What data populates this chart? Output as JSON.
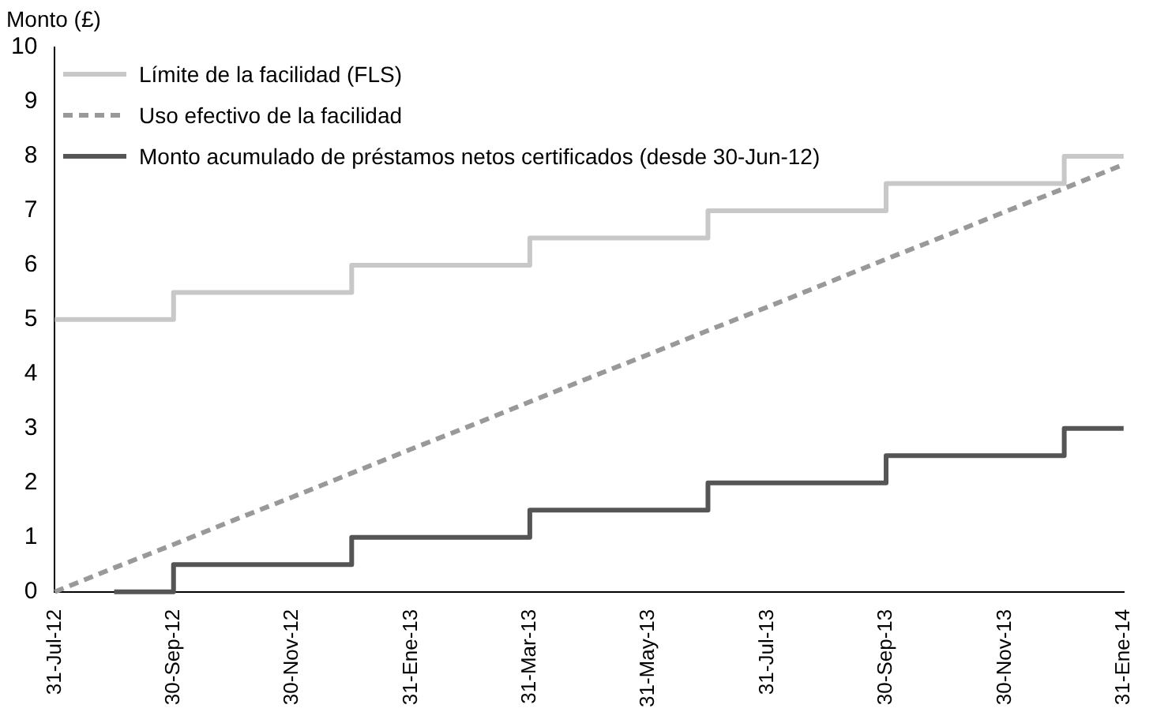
{
  "chart_data": {
    "type": "step",
    "ylabel": "Monto (£)",
    "categories": [
      "31-Jul-12",
      null,
      "30-Sep-12",
      null,
      "30-Nov-12",
      null,
      "31-Ene-13",
      null,
      "31-Mar-13",
      null,
      "31-May-13",
      null,
      "31-Jul-13",
      null,
      "30-Sep-13",
      null,
      "30-Nov-13",
      null,
      "31-Ene-14"
    ],
    "series": [
      {
        "name": "Límite de la facilidad (FLS)",
        "color": "#c8c8c8",
        "values": [
          5,
          5,
          5.5,
          5.5,
          5.5,
          6,
          6,
          6,
          6.5,
          6.5,
          6.5,
          7,
          7,
          7,
          7.5,
          7.5,
          7.5,
          8,
          8
        ]
      },
      {
        "name": "Uso efectivo de la facilidad",
        "color": "#999999",
        "type": "line",
        "line_style": "dashed",
        "values": [
          0,
          0.44,
          0.87,
          1.31,
          1.74,
          2.18,
          2.62,
          3.05,
          3.49,
          3.93,
          4.36,
          4.8,
          5.23,
          5.67,
          6.11,
          6.54,
          6.98,
          7.41,
          7.85
        ]
      },
      {
        "name": "Monto acumulado de préstamos netos certificados (desde 30-Jun-12)",
        "color": "#555555",
        "values": [
          null,
          0,
          0.5,
          0.5,
          0.5,
          1,
          1,
          1,
          1.5,
          1.5,
          1.5,
          2,
          2,
          2,
          2.5,
          2.5,
          2.5,
          3,
          3
        ]
      }
    ],
    "ylim": [
      0,
      10
    ],
    "yticks": [
      0,
      1,
      2,
      3,
      4,
      5,
      6,
      7,
      8,
      9,
      10
    ],
    "grid": false,
    "legend": "top left"
  }
}
